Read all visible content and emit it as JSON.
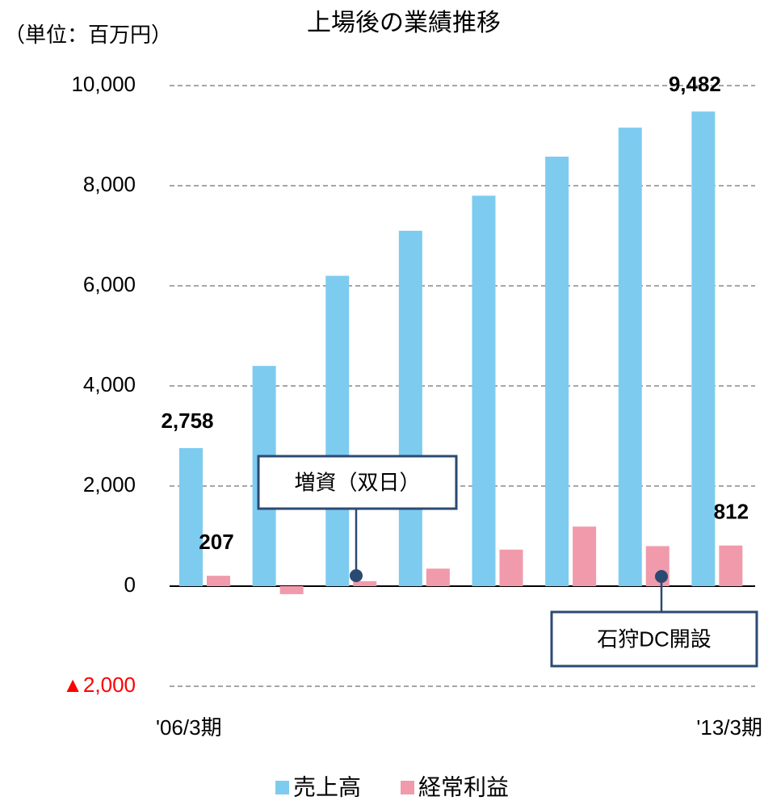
{
  "chart_data": {
    "type": "bar",
    "title": "上場後の業績推移",
    "unit_label": "（単位：百万円）",
    "categories": [
      "'06/3期",
      null,
      null,
      null,
      null,
      null,
      null,
      "'13/3期"
    ],
    "series": [
      {
        "name": "売上高",
        "color": "#7ecbf0",
        "values": [
          2758,
          4400,
          6200,
          7100,
          7800,
          8580,
          9160,
          9482
        ],
        "value_labels": [
          "2,758",
          null,
          null,
          null,
          null,
          null,
          null,
          "9,482"
        ]
      },
      {
        "name": "経常利益",
        "color": "#f19aab",
        "values": [
          207,
          -160,
          100,
          350,
          730,
          1190,
          800,
          812
        ],
        "value_labels": [
          "207",
          null,
          null,
          null,
          null,
          null,
          null,
          "812"
        ]
      }
    ],
    "ylim": [
      -2000,
      10000
    ],
    "yticks": [
      {
        "value": -2000,
        "label": "▲2,000"
      },
      0,
      {
        "value": 2000,
        "label": "2,000"
      },
      {
        "value": 4000,
        "label": "4,000"
      },
      {
        "value": 6000,
        "label": "6,000"
      },
      {
        "value": 8000,
        "label": "8,000"
      },
      {
        "value": 10000,
        "label": "10,000"
      }
    ],
    "ytick_label_colors": [
      "#ff0000",
      "#000000",
      "#000000",
      "#000000",
      "#000000",
      "#000000",
      "#000000"
    ],
    "grid": true,
    "legend": "bottom",
    "annotations": [
      {
        "text": "増資（双日）"
      },
      {
        "text": "石狩DC開設"
      }
    ]
  }
}
